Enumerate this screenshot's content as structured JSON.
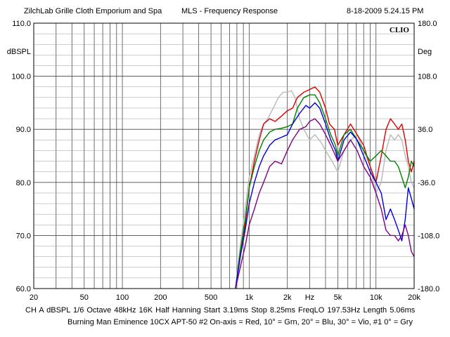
{
  "header": {
    "left": "ZilchLab Grille Cloth Emporium and Spa",
    "center": "MLS - Frequency Response",
    "right": "8-18-2009 5.24.15 PM"
  },
  "footer": {
    "params": "CH A   dBSPL   1/6 Octave   48kHz   16K   Half Hanning   Start 3.19ms    Stop 8.25ms    FreqLO 197.53Hz   Length 5.06ms",
    "description": "Burning Man Eminence 10CX APT-50 #2 On-axis = Red, 10° = Grn, 20° = Blu, 30° = Vio, #1 0° = Gry"
  },
  "chart_data": {
    "type": "line",
    "xscale": "log",
    "xlim": [
      20,
      20000
    ],
    "ylim": [
      60,
      110
    ],
    "y2lim": [
      -180,
      180
    ],
    "ylabel": "dBSPL",
    "y2label": "Deg",
    "logo": "CLIO",
    "x_ticks": [
      {
        "value": 20,
        "label": "20"
      },
      {
        "value": 50,
        "label": "50"
      },
      {
        "value": 100,
        "label": "100"
      },
      {
        "value": 200,
        "label": "200"
      },
      {
        "value": 500,
        "label": "500"
      },
      {
        "value": 1000,
        "label": "1k"
      },
      {
        "value": 2000,
        "label": "2k"
      },
      {
        "value": 3000,
        "label": "Hz"
      },
      {
        "value": 5000,
        "label": "5k"
      },
      {
        "value": 10000,
        "label": "10k"
      },
      {
        "value": 20000,
        "label": "20k"
      }
    ],
    "y_ticks": [
      {
        "value": 110,
        "label": "110.0"
      },
      {
        "value": 100,
        "label": "100.0"
      },
      {
        "value": 90,
        "label": "90.0"
      },
      {
        "value": 80,
        "label": "80.0"
      },
      {
        "value": 70,
        "label": "70.0"
      },
      {
        "value": 60,
        "label": "60.0"
      }
    ],
    "y2_ticks": [
      {
        "value": 180,
        "label": "180.0"
      },
      {
        "value": 108,
        "label": "108.0"
      },
      {
        "value": 36,
        "label": "36.0"
      },
      {
        "value": -36,
        "label": "-36.0"
      },
      {
        "value": -108,
        "label": "-108.0"
      },
      {
        "value": -180,
        "label": "-180.0"
      }
    ],
    "series": [
      {
        "color": "#b9b9b9",
        "points": [
          [
            780,
            60
          ],
          [
            850,
            68
          ],
          [
            930,
            75
          ],
          [
            1000,
            81
          ],
          [
            1100,
            85
          ],
          [
            1200,
            89
          ],
          [
            1300,
            91
          ],
          [
            1400,
            92
          ],
          [
            1550,
            94
          ],
          [
            1700,
            96
          ],
          [
            1850,
            97
          ],
          [
            2000,
            97
          ],
          [
            2150,
            97.3
          ],
          [
            2300,
            96
          ],
          [
            2500,
            92
          ],
          [
            2700,
            90
          ],
          [
            3000,
            88
          ],
          [
            3300,
            89
          ],
          [
            3700,
            87.5
          ],
          [
            4000,
            86
          ],
          [
            4500,
            84
          ],
          [
            5000,
            82
          ],
          [
            5600,
            86
          ],
          [
            6300,
            88
          ],
          [
            7100,
            89
          ],
          [
            8000,
            86
          ],
          [
            9000,
            83
          ],
          [
            10000,
            78
          ],
          [
            11000,
            80
          ],
          [
            12000,
            86
          ],
          [
            13000,
            89
          ],
          [
            14000,
            88
          ],
          [
            15000,
            89
          ],
          [
            16000,
            88
          ],
          [
            17000,
            85
          ],
          [
            18000,
            83
          ],
          [
            19000,
            80
          ],
          [
            20000,
            79
          ]
        ]
      },
      {
        "color": "#e00000",
        "points": [
          [
            780,
            60
          ],
          [
            850,
            66
          ],
          [
            930,
            72
          ],
          [
            1000,
            79
          ],
          [
            1100,
            84
          ],
          [
            1200,
            88
          ],
          [
            1300,
            91
          ],
          [
            1450,
            92
          ],
          [
            1600,
            91.5
          ],
          [
            1800,
            92.5
          ],
          [
            2000,
            93.5
          ],
          [
            2200,
            94
          ],
          [
            2400,
            96
          ],
          [
            2700,
            97
          ],
          [
            3000,
            97.5
          ],
          [
            3300,
            98
          ],
          [
            3600,
            97
          ],
          [
            4000,
            94
          ],
          [
            4300,
            91
          ],
          [
            4700,
            90
          ],
          [
            5000,
            87
          ],
          [
            5600,
            89
          ],
          [
            6300,
            91
          ],
          [
            7100,
            89
          ],
          [
            8000,
            87
          ],
          [
            9000,
            83
          ],
          [
            10000,
            80
          ],
          [
            11000,
            85
          ],
          [
            12000,
            90
          ],
          [
            13000,
            92
          ],
          [
            14000,
            91
          ],
          [
            15000,
            90
          ],
          [
            16000,
            91
          ],
          [
            17000,
            88
          ],
          [
            18000,
            84
          ],
          [
            19000,
            82
          ],
          [
            20000,
            84
          ]
        ]
      },
      {
        "color": "#008000",
        "points": [
          [
            780,
            60
          ],
          [
            850,
            67
          ],
          [
            930,
            73
          ],
          [
            1000,
            79
          ],
          [
            1100,
            83
          ],
          [
            1200,
            86
          ],
          [
            1300,
            88
          ],
          [
            1450,
            89.5
          ],
          [
            1600,
            90
          ],
          [
            1800,
            90.2
          ],
          [
            2000,
            90.5
          ],
          [
            2200,
            91
          ],
          [
            2400,
            94
          ],
          [
            2700,
            96
          ],
          [
            3000,
            96.5
          ],
          [
            3300,
            96.5
          ],
          [
            3600,
            95
          ],
          [
            4000,
            92
          ],
          [
            4400,
            89
          ],
          [
            4800,
            87
          ],
          [
            5000,
            85
          ],
          [
            5600,
            89
          ],
          [
            6300,
            90
          ],
          [
            7100,
            88
          ],
          [
            8000,
            86
          ],
          [
            9000,
            84
          ],
          [
            10000,
            85
          ],
          [
            11000,
            86
          ],
          [
            12000,
            85
          ],
          [
            13000,
            84
          ],
          [
            14000,
            84
          ],
          [
            15000,
            83
          ],
          [
            16000,
            81
          ],
          [
            17000,
            79
          ],
          [
            18000,
            81
          ],
          [
            19000,
            84
          ],
          [
            20000,
            83
          ]
        ]
      },
      {
        "color": "#0000e0",
        "points": [
          [
            780,
            60
          ],
          [
            850,
            66
          ],
          [
            930,
            71
          ],
          [
            1000,
            76
          ],
          [
            1100,
            80
          ],
          [
            1200,
            83
          ],
          [
            1300,
            85
          ],
          [
            1450,
            87
          ],
          [
            1600,
            88
          ],
          [
            1800,
            88.5
          ],
          [
            2000,
            89
          ],
          [
            2200,
            91
          ],
          [
            2500,
            93
          ],
          [
            2800,
            94.5
          ],
          [
            3000,
            94
          ],
          [
            3300,
            95
          ],
          [
            3600,
            94
          ],
          [
            4000,
            91
          ],
          [
            4400,
            88
          ],
          [
            4800,
            86
          ],
          [
            5000,
            84
          ],
          [
            5600,
            88
          ],
          [
            6300,
            89.5
          ],
          [
            7100,
            88
          ],
          [
            8000,
            85
          ],
          [
            9000,
            82
          ],
          [
            10000,
            80
          ],
          [
            11000,
            78
          ],
          [
            12000,
            73
          ],
          [
            13000,
            75
          ],
          [
            14000,
            73
          ],
          [
            15000,
            71
          ],
          [
            16000,
            69
          ],
          [
            17000,
            73
          ],
          [
            18000,
            79
          ],
          [
            19000,
            77
          ],
          [
            20000,
            75
          ]
        ]
      },
      {
        "color": "#800080",
        "points": [
          [
            780,
            60
          ],
          [
            850,
            64
          ],
          [
            930,
            68
          ],
          [
            1000,
            72
          ],
          [
            1100,
            75
          ],
          [
            1200,
            78
          ],
          [
            1300,
            80
          ],
          [
            1450,
            83
          ],
          [
            1600,
            84
          ],
          [
            1800,
            83.5
          ],
          [
            2000,
            86
          ],
          [
            2200,
            88
          ],
          [
            2500,
            90
          ],
          [
            2800,
            90.5
          ],
          [
            3000,
            91.5
          ],
          [
            3300,
            92
          ],
          [
            3600,
            91
          ],
          [
            4000,
            89
          ],
          [
            4400,
            87
          ],
          [
            4800,
            85
          ],
          [
            5000,
            84
          ],
          [
            5600,
            86
          ],
          [
            6300,
            88
          ],
          [
            7100,
            86
          ],
          [
            8000,
            83
          ],
          [
            9000,
            81
          ],
          [
            10000,
            78
          ],
          [
            11000,
            75
          ],
          [
            12000,
            71
          ],
          [
            13000,
            70
          ],
          [
            14000,
            70
          ],
          [
            15000,
            69
          ],
          [
            16000,
            70
          ],
          [
            17000,
            72
          ],
          [
            18000,
            70
          ],
          [
            19000,
            67
          ],
          [
            20000,
            66
          ]
        ]
      }
    ]
  }
}
